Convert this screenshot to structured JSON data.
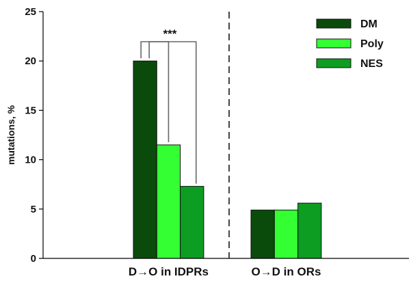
{
  "chart_data": {
    "type": "bar",
    "categories": [
      "D→O in IDPRs",
      "O→D in ORs"
    ],
    "series": [
      {
        "name": "DM",
        "values": [
          20.0,
          4.9
        ],
        "color": "#0a4a0a"
      },
      {
        "name": "Poly",
        "values": [
          11.5,
          4.9
        ],
        "color": "#33ff33"
      },
      {
        "name": "NES",
        "values": [
          7.3,
          5.6
        ],
        "color": "#0c9d22"
      }
    ],
    "ylabel": "mutations, %",
    "ylim": [
      0,
      25
    ],
    "yticks": [
      0,
      5,
      10,
      15,
      20,
      25
    ],
    "legend_position": "top-right",
    "divider": "dashed vertical line between categories",
    "annotation": {
      "text": "***",
      "brackets": "DM vs Poly and DM vs NES in D→O in IDPRs"
    }
  }
}
